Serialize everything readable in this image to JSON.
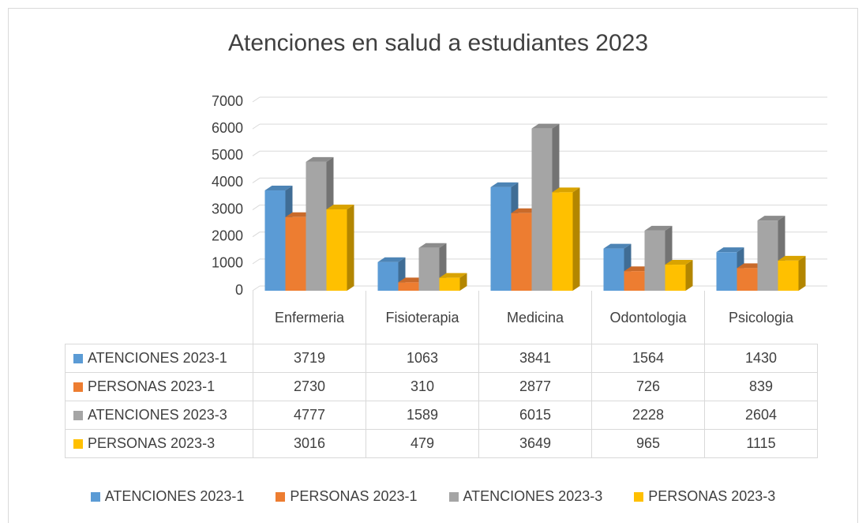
{
  "chart_data": {
    "type": "bar3d",
    "title": "Atenciones en salud a estudiantes 2023",
    "categories": [
      "Enfermeria",
      "Fisioterapia",
      "Medicina",
      "Odontologia",
      "Psicologia"
    ],
    "series": [
      {
        "name": "ATENCIONES 2023-1",
        "color": "#5b9bd5",
        "values": [
          3719,
          1063,
          3841,
          1564,
          1430
        ]
      },
      {
        "name": "PERSONAS 2023-1",
        "color": "#ed7d31",
        "values": [
          2730,
          310,
          2877,
          726,
          839
        ]
      },
      {
        "name": "ATENCIONES 2023-3",
        "color": "#a5a5a5",
        "values": [
          4777,
          1589,
          6015,
          2228,
          2604
        ]
      },
      {
        "name": "PERSONAS 2023-3",
        "color": "#ffc000",
        "values": [
          3016,
          479,
          3649,
          965,
          1115
        ]
      }
    ],
    "ylim": [
      0,
      7000
    ],
    "yticks": [
      0,
      1000,
      2000,
      3000,
      4000,
      5000,
      6000,
      7000
    ],
    "grid": true
  }
}
